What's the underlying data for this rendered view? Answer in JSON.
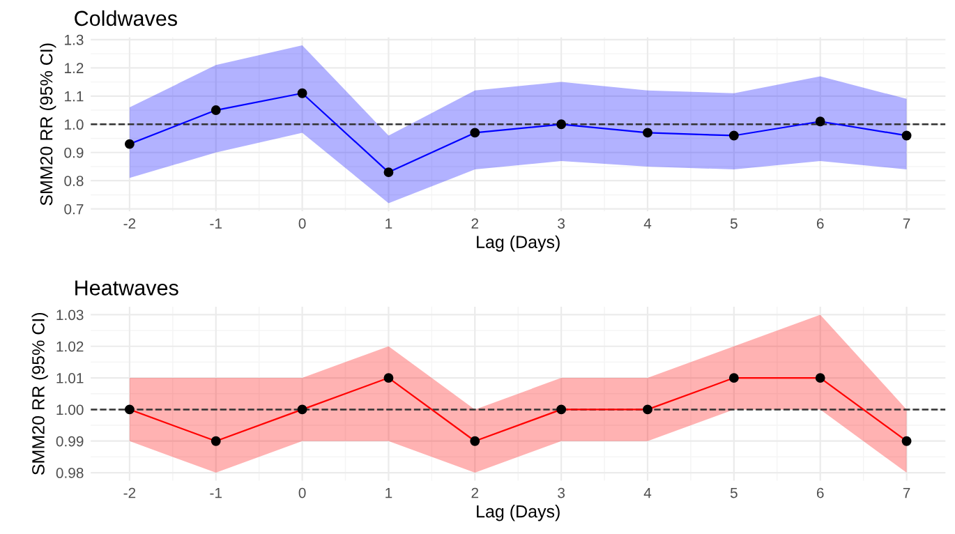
{
  "chart_data": [
    {
      "type": "line",
      "title": "Coldwaves",
      "xlabel": "Lag (Days)",
      "ylabel": "SMM20 RR (95% CI)",
      "x": [
        -2,
        -1,
        0,
        1,
        2,
        3,
        4,
        5,
        6,
        7
      ],
      "xlim": [
        -2.45,
        7.45
      ],
      "xticks": [
        -2,
        -1,
        0,
        1,
        2,
        3,
        4,
        5,
        6,
        7
      ],
      "ylim": [
        0.692,
        1.308
      ],
      "yticks": [
        0.7,
        0.8,
        0.9,
        {
          "value": 1.0,
          "label": "1.0"
        },
        1.1,
        1.2,
        1.3
      ],
      "grid": true,
      "marker": "circle",
      "line_style": "solid",
      "series": [
        {
          "color": "#0000ff",
          "values": [
            0.93,
            1.05,
            1.11,
            0.83,
            0.97,
            1.0,
            0.97,
            0.96,
            1.01,
            0.96
          ],
          "lower": [
            0.81,
            0.9,
            0.97,
            0.72,
            0.84,
            0.87,
            0.85,
            0.84,
            0.87,
            0.84
          ],
          "upper": [
            1.06,
            1.21,
            1.28,
            0.96,
            1.12,
            1.15,
            1.12,
            1.11,
            1.17,
            1.09
          ]
        }
      ],
      "ref_lines": [
        {
          "axis": "y",
          "value": 1.0,
          "line_style": "dashed",
          "color": "#333333"
        }
      ]
    },
    {
      "type": "line",
      "title": "Heatwaves",
      "xlabel": "Lag (Days)",
      "ylabel": "SMM20 RR (95% CI)",
      "x": [
        -2,
        -1,
        0,
        1,
        2,
        3,
        4,
        5,
        6,
        7
      ],
      "xlim": [
        -2.45,
        7.45
      ],
      "xticks": [
        -2,
        -1,
        0,
        1,
        2,
        3,
        4,
        5,
        6,
        7
      ],
      "ylim": [
        0.9775,
        1.0325
      ],
      "yticks": [
        {
          "value": 0.98,
          "label": "0.98"
        },
        {
          "value": 0.99,
          "label": "0.99"
        },
        {
          "value": 1.0,
          "label": "1.00"
        },
        {
          "value": 1.01,
          "label": "1.01"
        },
        {
          "value": 1.02,
          "label": "1.02"
        },
        {
          "value": 1.03,
          "label": "1.03"
        }
      ],
      "grid": true,
      "marker": "circle",
      "line_style": "solid",
      "series": [
        {
          "color": "#ff0000",
          "values": [
            1.0,
            0.99,
            1.0,
            1.01,
            0.99,
            1.0,
            1.0,
            1.01,
            1.01,
            0.99
          ],
          "lower": [
            0.99,
            0.98,
            0.99,
            0.99,
            0.98,
            0.99,
            0.99,
            1.0,
            1.0,
            0.98
          ],
          "upper": [
            1.01,
            1.01,
            1.01,
            1.02,
            1.0,
            1.01,
            1.01,
            1.02,
            1.03,
            1.0
          ]
        }
      ],
      "ref_lines": [
        {
          "axis": "y",
          "value": 1.0,
          "line_style": "dashed",
          "color": "#333333"
        }
      ]
    }
  ]
}
